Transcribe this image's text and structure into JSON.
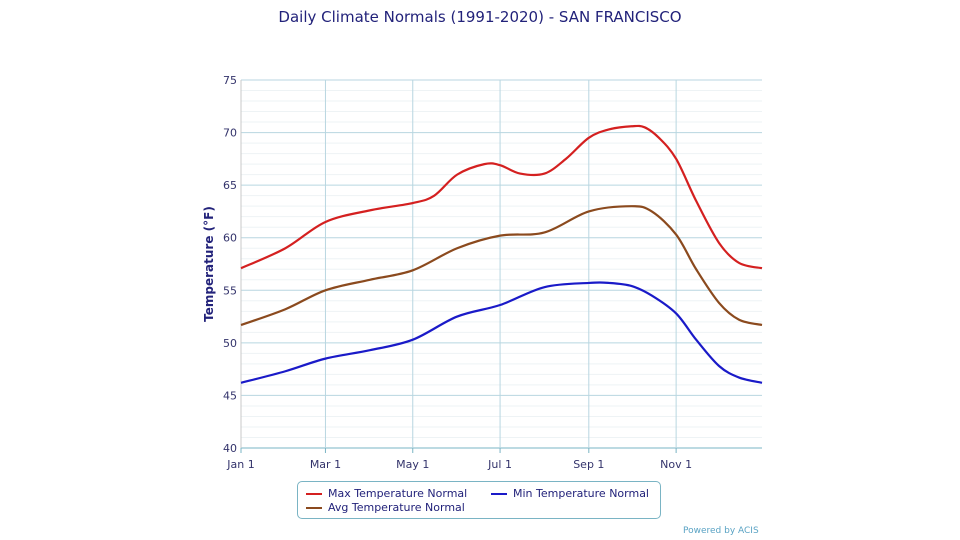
{
  "chart_data": {
    "type": "line",
    "title": "Daily Climate Normals (1991-2020) - SAN FRANCISCO",
    "ylabel": "Temperature (°F)",
    "xlabel": "",
    "ylim": [
      40,
      75
    ],
    "yticks": [
      "40",
      "45",
      "50",
      "55",
      "60",
      "65",
      "70",
      "75"
    ],
    "xticks": [
      {
        "label": "Jan 1",
        "day": 0
      },
      {
        "label": "Mar 1",
        "day": 59
      },
      {
        "label": "May 1",
        "day": 120
      },
      {
        "label": "Jul 1",
        "day": 181
      },
      {
        "label": "Sep 1",
        "day": 243
      },
      {
        "label": "Nov 1",
        "day": 304
      }
    ],
    "x_unit": "day of year",
    "grid": true,
    "legend_position": "bottom",
    "series": [
      {
        "name": "Max Temperature Normal",
        "color": "#d42020",
        "x": [
          0,
          31,
          59,
          90,
          120,
          135,
          151,
          170,
          181,
          195,
          212,
          227,
          243,
          257,
          273,
          282,
          292,
          304,
          318,
          334,
          348,
          364
        ],
        "y": [
          57.1,
          59,
          61.5,
          62.6,
          63.3,
          64,
          66,
          67,
          66.9,
          66.1,
          66.1,
          67.5,
          69.5,
          70.3,
          70.6,
          70.5,
          69.5,
          67.5,
          63.5,
          59.5,
          57.6,
          57.1
        ]
      },
      {
        "name": "Avg Temperature Normal",
        "color": "#8b4a1e",
        "x": [
          0,
          31,
          59,
          90,
          120,
          151,
          181,
          212,
          243,
          273,
          287,
          304,
          318,
          334,
          348,
          364
        ],
        "y": [
          51.7,
          53.2,
          55,
          56,
          56.9,
          59,
          60.2,
          60.5,
          62.5,
          63,
          62.5,
          60.3,
          57,
          53.8,
          52.2,
          51.7
        ]
      },
      {
        "name": "Min Temperature Normal",
        "color": "#1a1ac8",
        "x": [
          0,
          31,
          59,
          90,
          120,
          151,
          181,
          212,
          243,
          257,
          273,
          287,
          304,
          318,
          334,
          348,
          364
        ],
        "y": [
          46.2,
          47.3,
          48.5,
          49.3,
          50.3,
          52.5,
          53.6,
          55.3,
          55.7,
          55.7,
          55.4,
          54.5,
          52.8,
          50.3,
          47.8,
          46.7,
          46.2
        ]
      }
    ]
  },
  "footer": {
    "powered_by": "Powered by ACIS"
  }
}
